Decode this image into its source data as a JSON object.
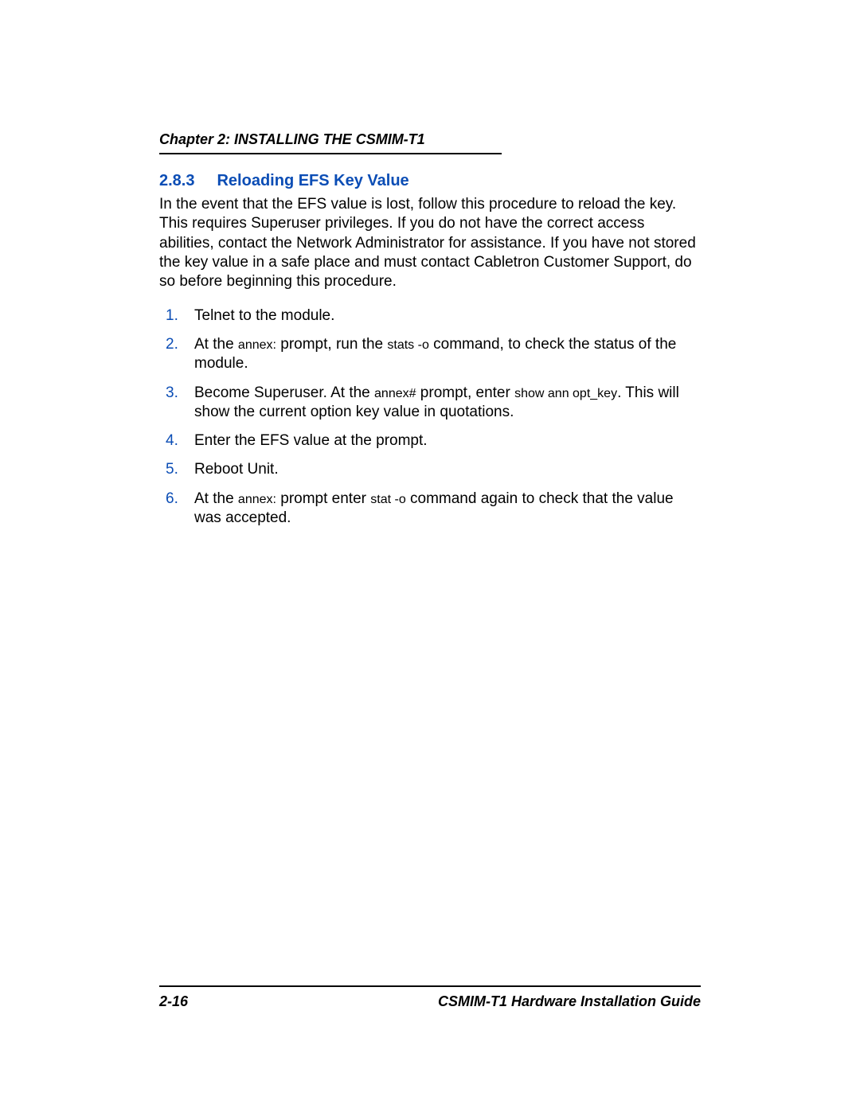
{
  "header": {
    "chapter_label": "Chapter 2:",
    "chapter_title": "INSTALLING THE CSMIM-T1"
  },
  "section": {
    "number": "2.8.3",
    "title": "Reloading EFS Key Value",
    "heading_color": "#0b4db5"
  },
  "intro": "In the event that the EFS value is lost, follow this procedure to reload the key. This requires Superuser privileges. If you do not have the correct access abilities, contact the Network Administrator for assistance. If you have not stored the key value in a safe place and must contact Cabletron Customer Support, do so before beginning this procedure.",
  "steps": [
    {
      "text": "Telnet to the module."
    },
    {
      "parts": [
        {
          "t": "At the ",
          "style": "normal"
        },
        {
          "t": "annex:",
          "style": "mono"
        },
        {
          "t": " prompt, run the ",
          "style": "normal"
        },
        {
          "t": "stats -o",
          "style": "mono"
        },
        {
          "t": " command, to check the status of the module.",
          "style": "normal"
        }
      ]
    },
    {
      "parts": [
        {
          "t": "Become Superuser. At the ",
          "style": "normal"
        },
        {
          "t": "annex#",
          "style": "mono"
        },
        {
          "t": " prompt, enter ",
          "style": "normal"
        },
        {
          "t": "show ann opt_key",
          "style": "mono"
        },
        {
          "t": ". This will show the current option key value in quotations.",
          "style": "normal"
        }
      ]
    },
    {
      "text": "Enter the EFS value at the prompt."
    },
    {
      "text": "Reboot Unit."
    },
    {
      "parts": [
        {
          "t": "At the ",
          "style": "normal"
        },
        {
          "t": "annex:",
          "style": "mono"
        },
        {
          "t": " prompt enter ",
          "style": "normal"
        },
        {
          "t": "stat -o",
          "style": "mono"
        },
        {
          "t": " command again to check that the value was accepted.",
          "style": "normal"
        }
      ]
    }
  ],
  "footer": {
    "page_number": "2-16",
    "guide_title": "CSMIM-T1 Hardware Installation Guide"
  },
  "colors": {
    "text": "#000000",
    "accent": "#0b4db5",
    "background": "#ffffff"
  }
}
